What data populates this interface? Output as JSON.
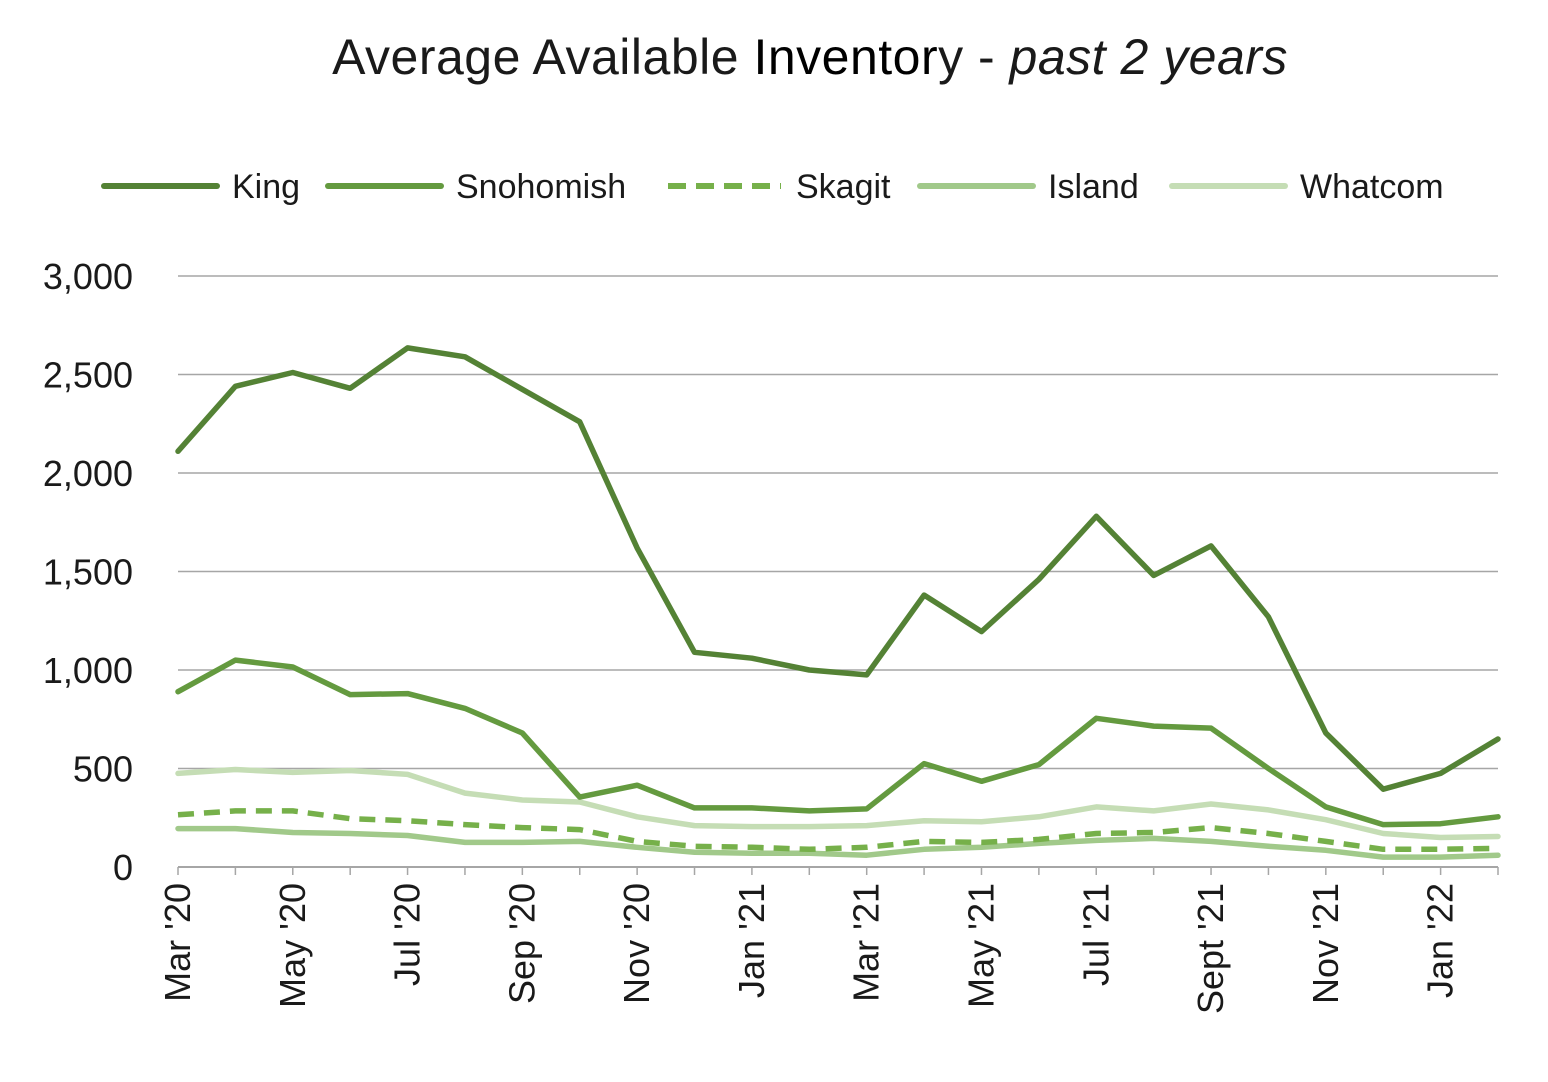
{
  "chart_data": {
    "type": "line",
    "title_parts": {
      "part1": "Average Available ",
      "part2": "Inventor",
      "part3": "y - ",
      "part4": "past 2 years"
    },
    "xlabel": "",
    "ylabel": "",
    "ylim": [
      0,
      3000
    ],
    "y_ticks": [
      "0",
      "500",
      "1,000",
      "1,500",
      "2,000",
      "2,500",
      "3,000"
    ],
    "y_tick_values": [
      0,
      500,
      1000,
      1500,
      2000,
      2500,
      3000
    ],
    "grid": true,
    "legend_position": "top",
    "x_tick_labels": [
      "Mar '20",
      "May '20",
      "Jul '20",
      "Sep '20",
      "Nov '20",
      "Jan '21",
      "Mar '21",
      "May '21",
      "Jul '21",
      "Sept '21",
      "Nov '21",
      "Jan '22"
    ],
    "x_tick_indices": [
      0,
      2,
      4,
      6,
      8,
      10,
      12,
      14,
      16,
      18,
      20,
      22
    ],
    "x": [
      "Mar '20",
      "Apr '20",
      "May '20",
      "Jun '20",
      "Jul '20",
      "Aug '20",
      "Sep '20",
      "Oct '20",
      "Nov '20",
      "Dec '20",
      "Jan '21",
      "Feb '21",
      "Mar '21",
      "Apr '21",
      "May '21",
      "Jun '21",
      "Jul '21",
      "Aug '21",
      "Sept '21",
      "Oct '21",
      "Nov '21",
      "Dec '21",
      "Jan '22",
      "Feb '22"
    ],
    "series": [
      {
        "name": "King",
        "color": "#548235",
        "dash": "solid",
        "values": [
          2110,
          2440,
          2510,
          2430,
          2635,
          2590,
          2425,
          2260,
          1620,
          1090,
          1060,
          1000,
          975,
          1380,
          1195,
          1460,
          1780,
          1480,
          1630,
          1270,
          680,
          395,
          475,
          650
        ]
      },
      {
        "name": "Snohomish",
        "color": "#649a3f",
        "dash": "solid",
        "values": [
          890,
          1050,
          1015,
          875,
          880,
          805,
          680,
          355,
          415,
          300,
          300,
          285,
          295,
          525,
          435,
          520,
          755,
          715,
          705,
          500,
          305,
          215,
          220,
          255
        ]
      },
      {
        "name": "Skagit",
        "color": "#76b04a",
        "dash": "dashed",
        "values": [
          265,
          285,
          285,
          245,
          235,
          215,
          200,
          190,
          130,
          105,
          100,
          90,
          100,
          130,
          125,
          140,
          170,
          175,
          200,
          170,
          130,
          90,
          90,
          95
        ]
      },
      {
        "name": "Island",
        "color": "#a1c98a",
        "dash": "solid",
        "values": [
          195,
          195,
          175,
          170,
          160,
          125,
          125,
          130,
          100,
          75,
          70,
          70,
          60,
          90,
          100,
          120,
          135,
          145,
          130,
          105,
          85,
          50,
          50,
          60
        ]
      },
      {
        "name": "Whatcom",
        "color": "#c5ddb5",
        "dash": "solid",
        "values": [
          475,
          495,
          480,
          490,
          470,
          375,
          340,
          330,
          255,
          210,
          205,
          205,
          210,
          235,
          230,
          255,
          305,
          285,
          320,
          290,
          240,
          170,
          150,
          155
        ]
      }
    ]
  }
}
